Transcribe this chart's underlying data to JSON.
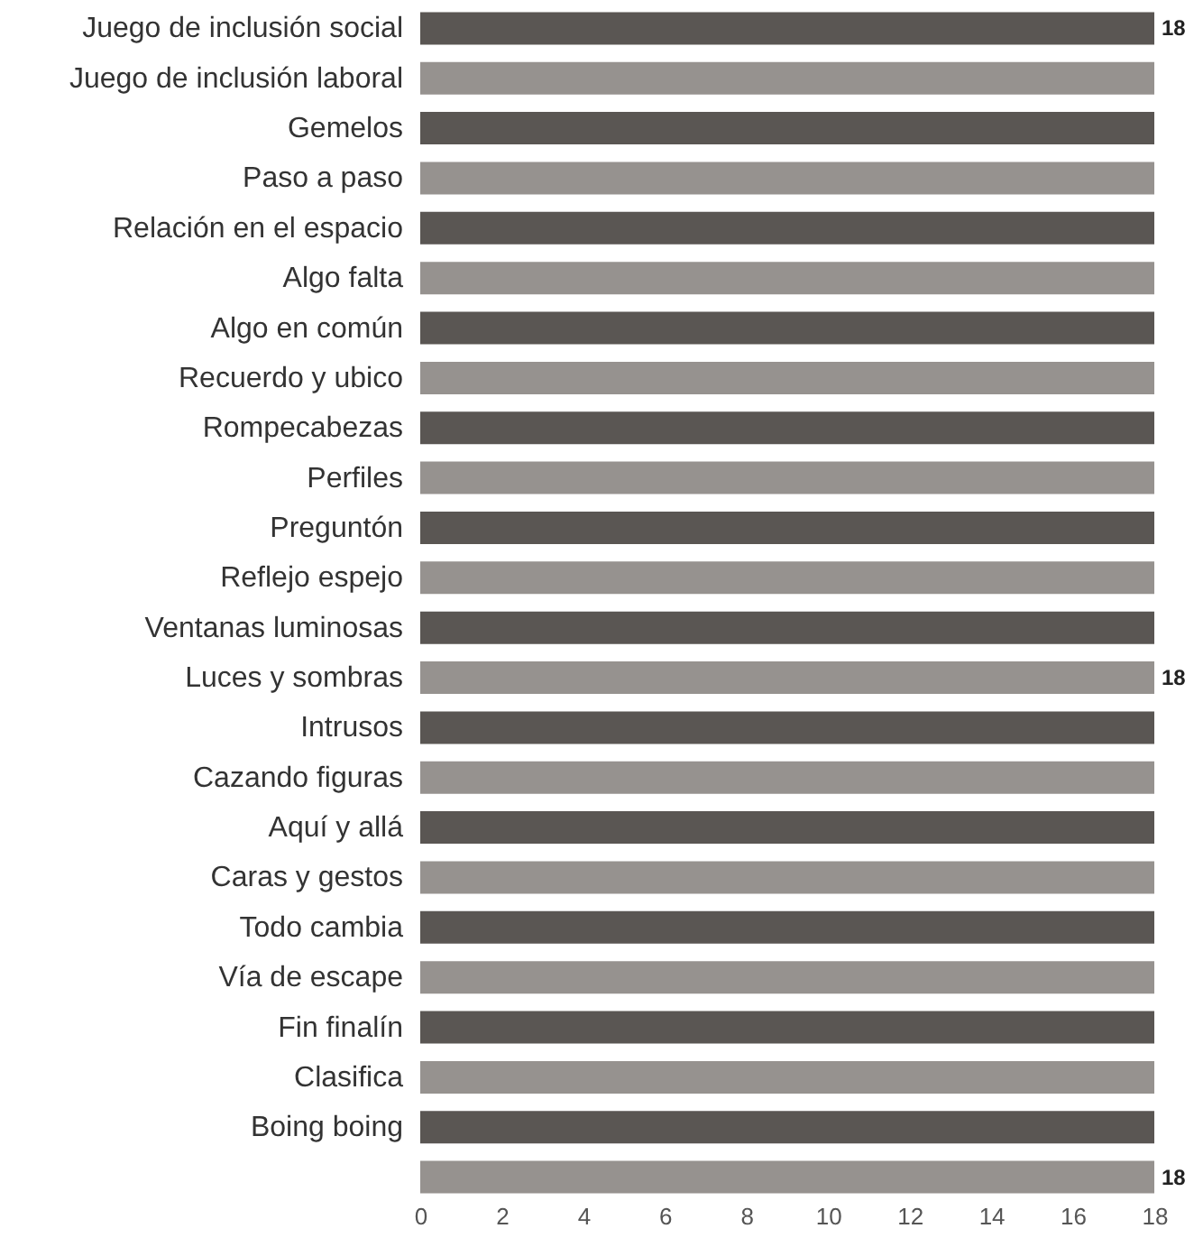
{
  "chart_data": {
    "type": "bar",
    "orientation": "horizontal",
    "categories": [
      "Juego de inclusión social",
      "Juego de inclusión laboral",
      "Gemelos",
      "Paso a paso",
      "Relación en el espacio",
      "Algo falta",
      "Algo en común",
      "Recuerdo y ubico",
      "Rompecabezas",
      "Perfiles",
      "Preguntón",
      "Reflejo espejo",
      "Ventanas luminosas",
      "Luces y sombras",
      "Intrusos",
      "Cazando figuras",
      "Aquí y allá",
      "Caras y gestos",
      "Todo cambia",
      "Vía de escape",
      "Fin finalín",
      "Clasifica",
      "Boing boing",
      null
    ],
    "values": [
      18,
      18,
      18,
      18,
      18,
      18,
      18,
      18,
      18,
      18,
      18,
      18,
      18,
      18,
      18,
      18,
      18,
      18,
      18,
      18,
      18,
      18,
      18,
      18
    ],
    "colors": [
      "#5a5653",
      "#96928f",
      "#5a5653",
      "#96928f",
      "#5a5653",
      "#96928f",
      "#5a5653",
      "#96928f",
      "#5a5653",
      "#96928f",
      "#5a5653",
      "#96928f",
      "#5a5653",
      "#96928f",
      "#5a5653",
      "#96928f",
      "#5a5653",
      "#96928f",
      "#5a5653",
      "#96928f",
      "#5a5653",
      "#96928f",
      "#5a5653",
      "#96928f"
    ],
    "value_labels": [
      "18",
      null,
      null,
      null,
      null,
      null,
      null,
      null,
      null,
      null,
      null,
      null,
      null,
      "18",
      null,
      null,
      null,
      null,
      null,
      null,
      null,
      null,
      null,
      "18"
    ],
    "xlim": [
      0,
      18
    ],
    "xticks": [
      0,
      2,
      4,
      6,
      8,
      10,
      12,
      14,
      16,
      18
    ],
    "grid": false
  }
}
